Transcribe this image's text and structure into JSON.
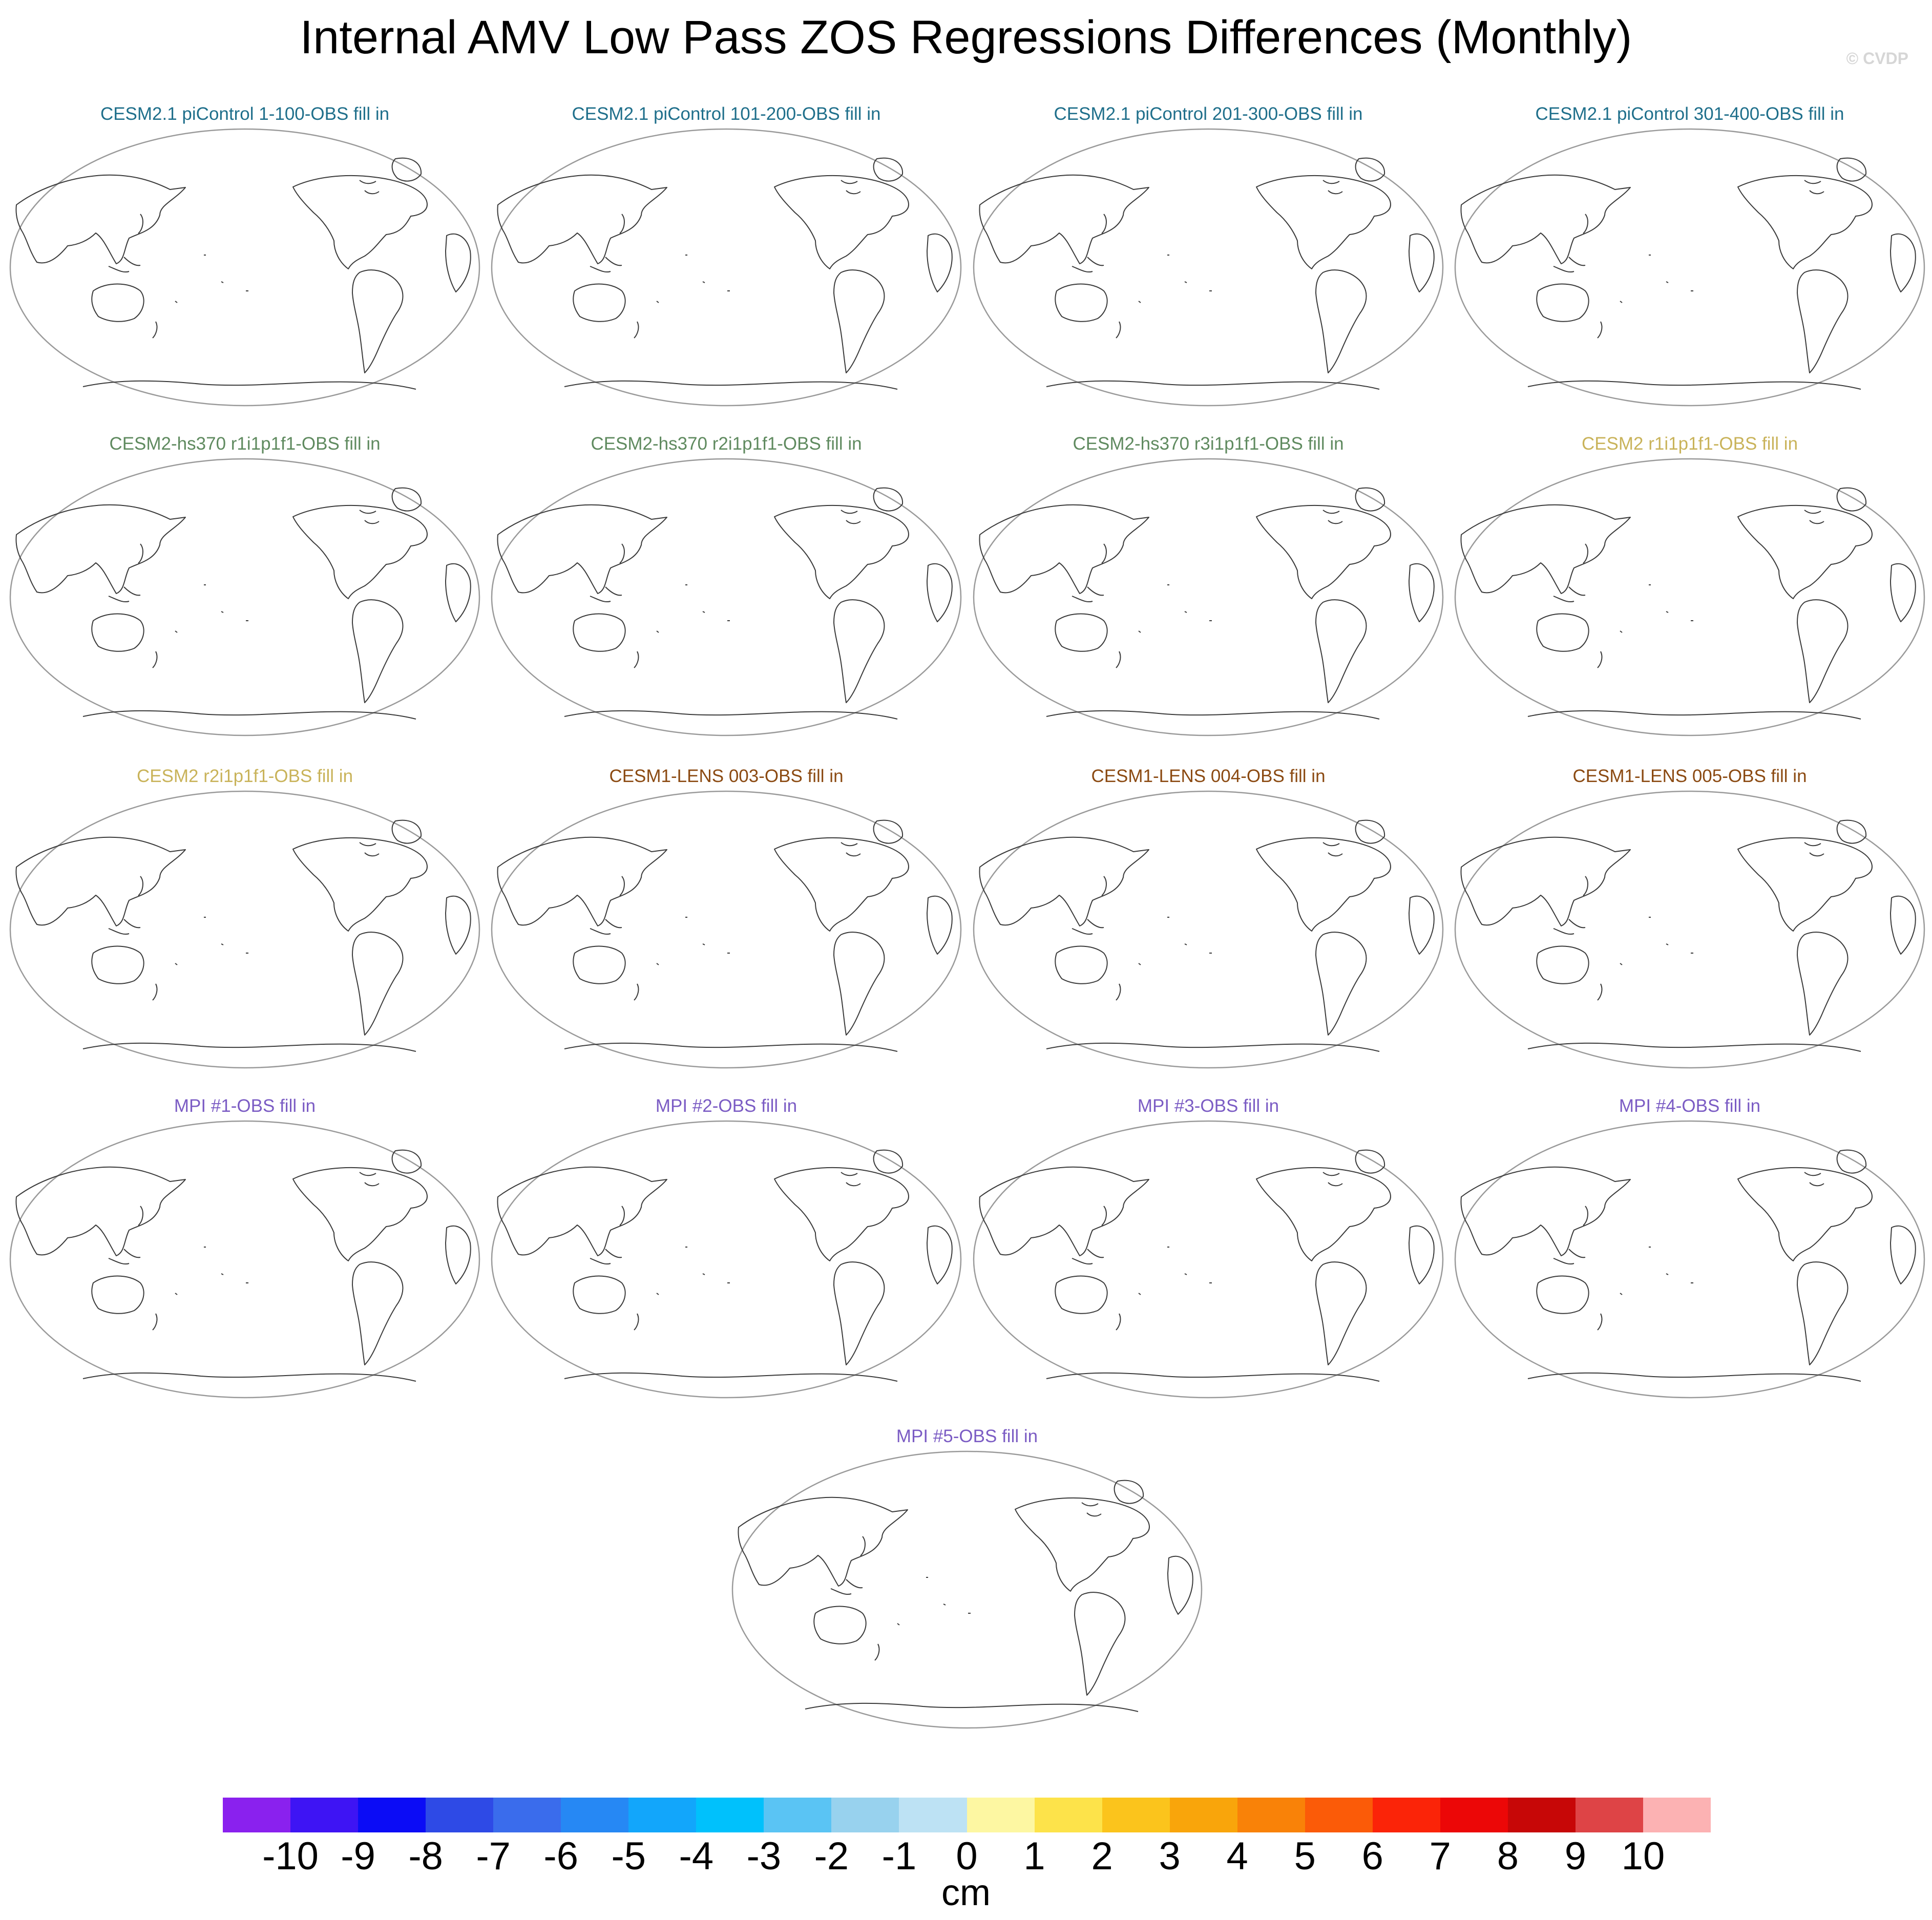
{
  "figure": {
    "title": "Internal AMV Low Pass ZOS Regressions Differences (Monthly)",
    "credit": "© CVDP"
  },
  "panels": [
    {
      "label": "CESM2.1 piControl 1-100-OBS fill in",
      "color": "#1f6f8b"
    },
    {
      "label": "CESM2.1 piControl 101-200-OBS fill in",
      "color": "#1f6f8b"
    },
    {
      "label": "CESM2.1 piControl 201-300-OBS fill in",
      "color": "#1f6f8b"
    },
    {
      "label": "CESM2.1 piControl 301-400-OBS fill in",
      "color": "#1f6f8b"
    },
    {
      "label": "CESM2-hs370 r1i1p1f1-OBS fill in",
      "color": "#5f8a5f"
    },
    {
      "label": "CESM2-hs370 r2i1p1f1-OBS fill in",
      "color": "#5f8a5f"
    },
    {
      "label": "CESM2-hs370 r3i1p1f1-OBS fill in",
      "color": "#5f8a5f"
    },
    {
      "label": "CESM2 r1i1p1f1-OBS fill in",
      "color": "#c9b35a"
    },
    {
      "label": "CESM2 r2i1p1f1-OBS fill in",
      "color": "#c9b35a"
    },
    {
      "label": "CESM1-LENS 003-OBS fill in",
      "color": "#8b4a12"
    },
    {
      "label": "CESM1-LENS 004-OBS fill in",
      "color": "#8b4a12"
    },
    {
      "label": "CESM1-LENS 005-OBS fill in",
      "color": "#8b4a12"
    },
    {
      "label": "MPI #1-OBS fill in",
      "color": "#7b5cc4"
    },
    {
      "label": "MPI #2-OBS fill in",
      "color": "#7b5cc4"
    },
    {
      "label": "MPI #3-OBS fill in",
      "color": "#7b5cc4"
    },
    {
      "label": "MPI #4-OBS fill in",
      "color": "#7b5cc4"
    },
    {
      "label": "MPI #5-OBS fill in",
      "color": "#7b5cc4"
    }
  ],
  "colorbar": {
    "unit": "cm",
    "levels": [
      "-10",
      "-9",
      "-8",
      "-7",
      "-6",
      "-5",
      "-4",
      "-3",
      "-2",
      "-1",
      "0",
      "1",
      "2",
      "3",
      "4",
      "5",
      "6",
      "7",
      "8",
      "9",
      "10"
    ],
    "colors": [
      "#8a21ee",
      "#3e14f4",
      "#0b0cf6",
      "#2e4ae6",
      "#3a6cec",
      "#2688f4",
      "#12a6fb",
      "#00c1fc",
      "#5ac4f4",
      "#98d2ee",
      "#bde2f4",
      "#fdf7a2",
      "#fde34a",
      "#fbc41c",
      "#f9a50b",
      "#f98208",
      "#fb5b08",
      "#fb2408",
      "#ec0707",
      "#c70707",
      "#de4446",
      "#fcb2b3"
    ]
  }
}
